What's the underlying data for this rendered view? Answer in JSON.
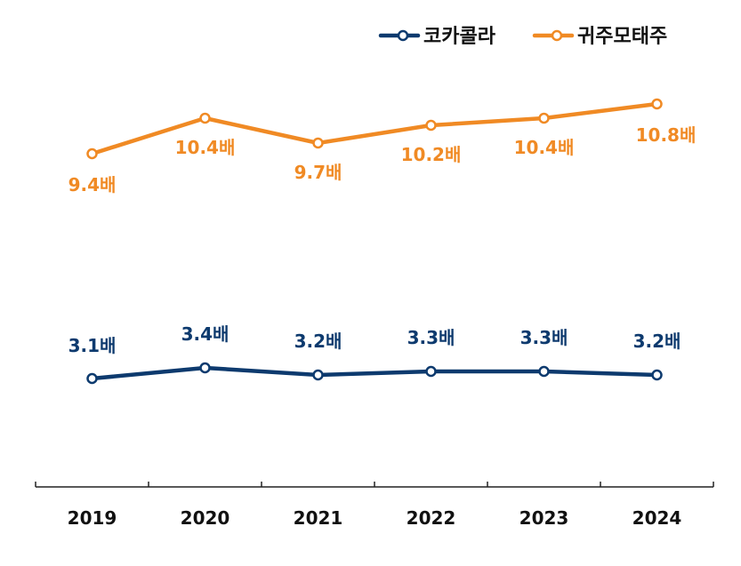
{
  "chart_data": {
    "type": "line",
    "categories": [
      "2019",
      "2020",
      "2021",
      "2022",
      "2023",
      "2024"
    ],
    "series": [
      {
        "name": "코카콜라",
        "color": "#0d3a6e",
        "values": [
          3.1,
          3.4,
          3.2,
          3.3,
          3.3,
          3.2
        ],
        "labels": [
          "3.1배",
          "3.4배",
          "3.2배",
          "3.3배",
          "3.3배",
          "3.2배"
        ]
      },
      {
        "name": "귀주모태주",
        "color": "#f08a24",
        "values": [
          9.4,
          10.4,
          9.7,
          10.2,
          10.4,
          10.8
        ],
        "labels": [
          "9.4배",
          "10.4배",
          "9.7배",
          "10.2배",
          "10.4배",
          "10.8배"
        ]
      }
    ],
    "legend_position": "top-right",
    "grid": false,
    "y_axis_visible": false
  }
}
